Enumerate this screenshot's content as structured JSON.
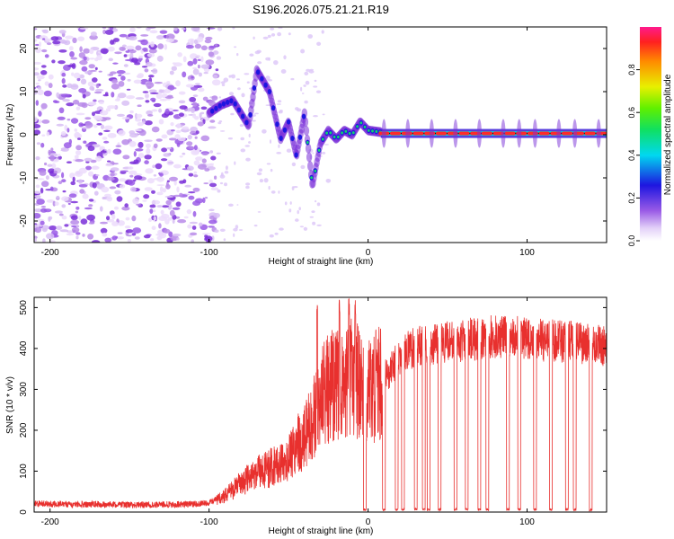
{
  "title": "S196.2026.075.21.21.R19",
  "chart_data": [
    {
      "type": "heatmap",
      "name": "spectrogram",
      "xlabel": "Height of straight line (km)",
      "ylabel": "Frequency (Hz)",
      "xlim": [
        -210,
        150
      ],
      "ylim": [
        -25,
        25
      ],
      "xticks": [
        -200,
        -100,
        0,
        100
      ],
      "yticks": [
        -20,
        -10,
        0,
        10,
        20
      ],
      "x_tick_labels": [
        "-200",
        "-100",
        "0",
        "100"
      ],
      "y_tick_labels": [
        "-20",
        "-10",
        "0",
        "10",
        "20"
      ],
      "signal_track": {
        "x": [
          -100,
          -92,
          -85,
          -80,
          -75,
          -70,
          -62,
          -55,
          -50,
          -45,
          -40,
          -35,
          -30,
          -25,
          -20,
          -15,
          -10,
          -5,
          0,
          10,
          150
        ],
        "y": [
          5,
          7,
          8,
          5,
          2,
          15,
          10,
          -1,
          3,
          -5,
          5,
          -12,
          -2,
          1,
          -1,
          1,
          0,
          3,
          1,
          0.5,
          0.3
        ]
      },
      "signal_bursts_x": [
        10,
        25,
        40,
        55,
        70,
        85,
        95,
        105,
        120,
        130,
        145
      ],
      "noise_region_x": [
        -210,
        -95
      ],
      "grid": false
    },
    {
      "type": "colorbar",
      "name": "amplitude-scale",
      "label": "Normalized spectral amplitude",
      "range": [
        0,
        1
      ],
      "ticks": [
        0.0,
        0.2,
        0.4,
        0.6,
        0.8
      ],
      "tick_labels": [
        "0.0",
        "0.2",
        "0.4",
        "0.6",
        "0.8"
      ]
    },
    {
      "type": "line",
      "name": "snr-trace",
      "xlabel": "Height of straight line (km)",
      "ylabel": "SNR (10 * v/v)",
      "xlim": [
        -210,
        150
      ],
      "ylim": [
        0,
        525
      ],
      "xticks": [
        -200,
        -100,
        0,
        100
      ],
      "yticks": [
        0,
        100,
        200,
        300,
        400,
        500
      ],
      "x_tick_labels": [
        "-200",
        "-100",
        "0",
        "100"
      ],
      "y_tick_labels": [
        "0",
        "100",
        "200",
        "300",
        "400",
        "500"
      ],
      "color": "#e8302e",
      "x": [
        -210,
        -190,
        -170,
        -150,
        -130,
        -110,
        -100,
        -90,
        -80,
        -70,
        -60,
        -50,
        -45,
        -40,
        -35,
        -30,
        -25,
        -20,
        -15,
        -10,
        -5,
        0,
        5,
        10,
        15,
        20,
        25,
        30,
        40,
        50,
        60,
        70,
        80,
        90,
        100,
        110,
        120,
        130,
        140,
        150
      ],
      "y": [
        18,
        15,
        16,
        14,
        15,
        16,
        20,
        40,
        70,
        95,
        110,
        130,
        160,
        190,
        230,
        280,
        300,
        320,
        300,
        330,
        320,
        300,
        310,
        330,
        350,
        380,
        395,
        405,
        410,
        415,
        420,
        425,
        430,
        428,
        425,
        420,
        418,
        415,
        410,
        405
      ],
      "dropout_x": [
        -2,
        10,
        18,
        22,
        30,
        35,
        38,
        45,
        55,
        62,
        70,
        75,
        88,
        95,
        105,
        115,
        125,
        130,
        140
      ],
      "spike_x": [
        -32,
        -18,
        -12,
        -8
      ],
      "grid": false
    }
  ]
}
